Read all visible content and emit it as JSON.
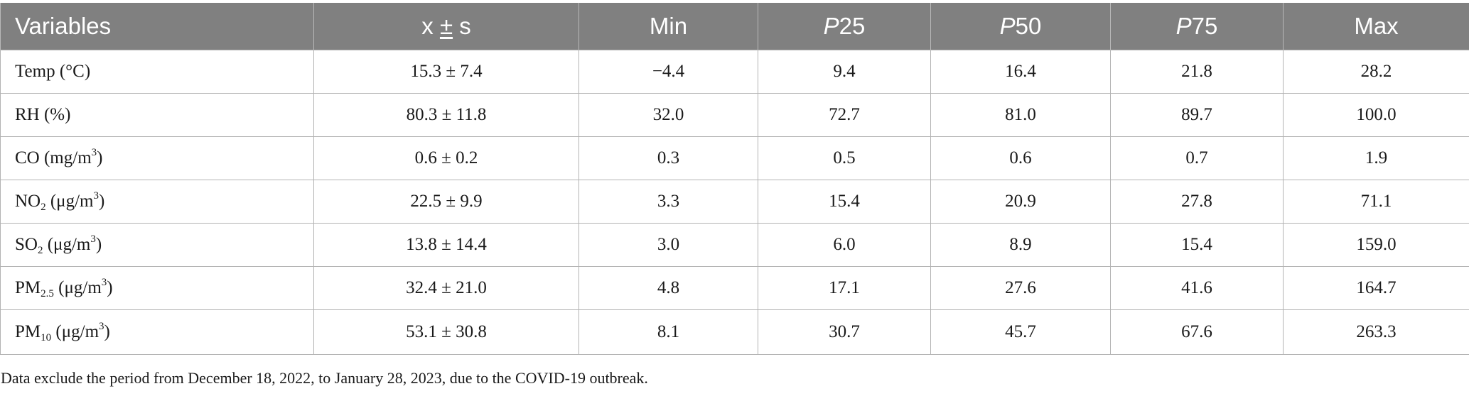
{
  "table": {
    "headers": {
      "variables": "Variables",
      "mean_sd_x": "x",
      "mean_sd_pm": "±",
      "mean_sd_s": "s",
      "min": "Min",
      "p25_letter": "P",
      "p25_num": "25",
      "p50_letter": "P",
      "p50_num": "50",
      "p75_letter": "P",
      "p75_num": "75",
      "max": "Max"
    },
    "rows": [
      {
        "var_main": "Temp (°C)",
        "var_sub": "",
        "var_tail": "",
        "var_sup": "",
        "var_end": "",
        "mean_sd": "15.3 ± 7.4",
        "min": "−4.4",
        "p25": "9.4",
        "p50": "16.4",
        "p75": "21.8",
        "max": "28.2"
      },
      {
        "var_main": "RH (%)",
        "var_sub": "",
        "var_tail": "",
        "var_sup": "",
        "var_end": "",
        "mean_sd": "80.3 ± 11.8",
        "min": "32.0",
        "p25": "72.7",
        "p50": "81.0",
        "p75": "89.7",
        "max": "100.0"
      },
      {
        "var_main": "CO",
        "var_sub": "",
        "var_tail": " (mg/m",
        "var_sup": "3",
        "var_end": ")",
        "mean_sd": "0.6 ± 0.2",
        "min": "0.3",
        "p25": "0.5",
        "p50": "0.6",
        "p75": "0.7",
        "max": "1.9"
      },
      {
        "var_main": "NO",
        "var_sub": "2",
        "var_tail": " (μg/m",
        "var_sup": "3",
        "var_end": ")",
        "mean_sd": "22.5 ± 9.9",
        "min": "3.3",
        "p25": "15.4",
        "p50": "20.9",
        "p75": "27.8",
        "max": "71.1"
      },
      {
        "var_main": "SO",
        "var_sub": "2",
        "var_tail": " (μg/m",
        "var_sup": "3",
        "var_end": ")",
        "mean_sd": "13.8 ± 14.4",
        "min": "3.0",
        "p25": "6.0",
        "p50": "8.9",
        "p75": "15.4",
        "max": "159.0"
      },
      {
        "var_main": "PM",
        "var_sub": "2.5",
        "var_tail": " (μg/m",
        "var_sup": "3",
        "var_end": ")",
        "mean_sd": "32.4 ± 21.0",
        "min": "4.8",
        "p25": "17.1",
        "p50": "27.6",
        "p75": "41.6",
        "max": "164.7"
      },
      {
        "var_main": "PM",
        "var_sub": "10",
        "var_tail": " (μg/m",
        "var_sup": "3",
        "var_end": ")",
        "mean_sd": "53.1 ± 30.8",
        "min": "8.1",
        "p25": "30.7",
        "p50": "45.7",
        "p75": "67.6",
        "max": "263.3"
      }
    ]
  },
  "footnote": "Data exclude the period from December 18, 2022, to January 28, 2023, due to the COVID-19 outbreak.",
  "colors": {
    "header_bg": "#808080",
    "header_text": "#ffffff",
    "grid": "#b3b3b3",
    "body_text": "#1a1a1a"
  }
}
